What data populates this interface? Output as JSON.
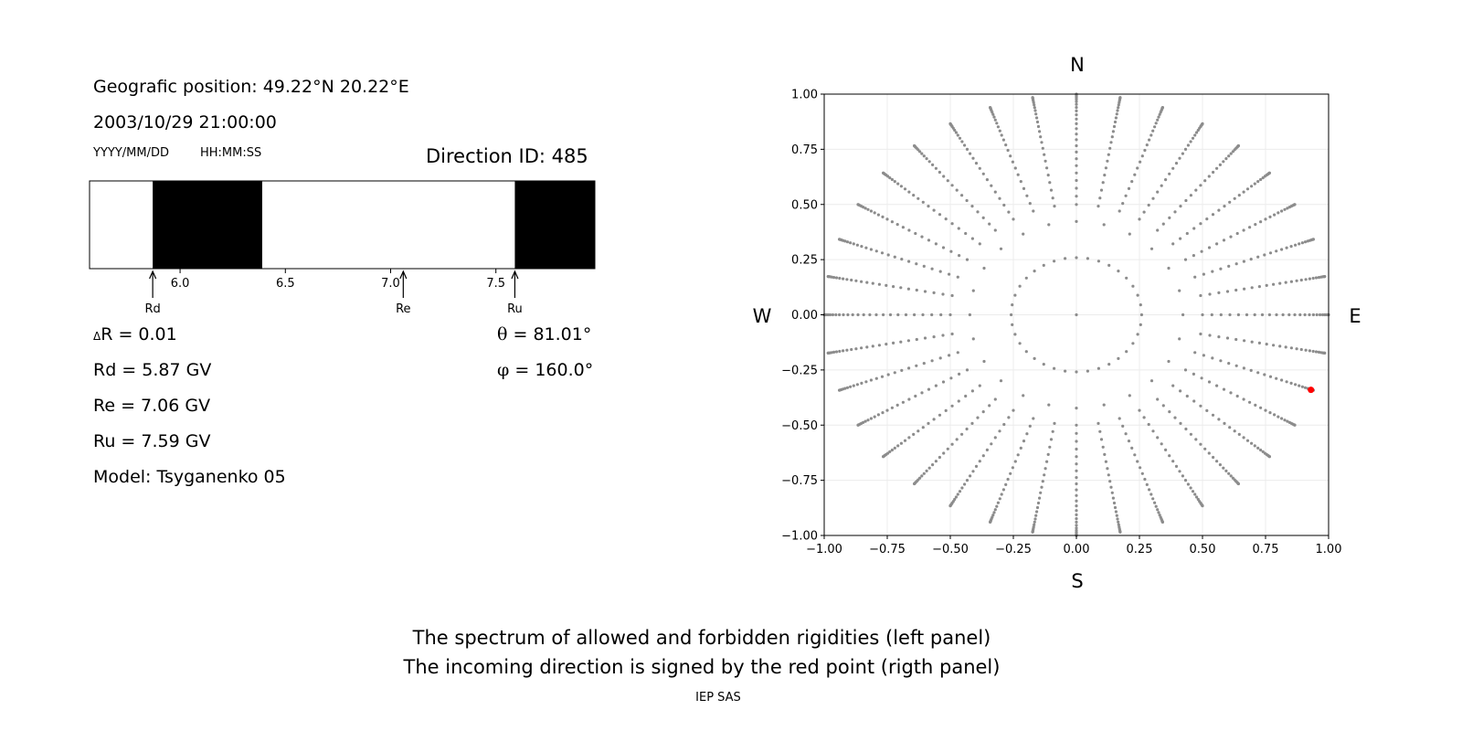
{
  "left_panel": {
    "geo_position": "Geografic position: 49.22°N 20.22°E",
    "datetime": "2003/10/29 21:00:00",
    "date_format": "YYYY/MM/DD",
    "time_format": "HH:MM:SS",
    "direction_id": "Direction ID: 485",
    "delta_r_symbol": "Δ",
    "delta_r": "R = 0.01",
    "rd": "Rd = 5.87 GV",
    "re": "Re = 7.06 GV",
    "ru": "Ru = 7.59 GV",
    "model": "Model: Tsyganenko 05",
    "theta_symbol": "θ",
    "theta": "= 81.01°",
    "phi_symbol": "φ",
    "phi": "= 160.0°"
  },
  "captions": {
    "line1": "The spectrum of allowed and forbidden rigidities (left panel)",
    "line2": "The incoming direction is signed by the red point (rigth panel)",
    "credit": "IEP SAS"
  },
  "chart_data": [
    {
      "type": "spectrum_bar",
      "xlim": [
        5.57,
        7.97
      ],
      "xticks": [
        6.0,
        6.5,
        7.0,
        7.5
      ],
      "xtick_labels": [
        "6.0",
        "6.5",
        "7.0",
        "7.5"
      ],
      "forbidden_bands": [
        [
          5.87,
          6.39
        ],
        [
          7.59,
          7.97
        ]
      ],
      "markers": [
        {
          "label": "Rd",
          "value": 5.87
        },
        {
          "label": "Re",
          "value": 7.06
        },
        {
          "label": "Ru",
          "value": 7.59
        }
      ],
      "colors": {
        "forbidden": "#000000",
        "allowed": "#ffffff"
      }
    },
    {
      "type": "scatter",
      "xlim": [
        -1.0,
        1.0
      ],
      "ylim": [
        -1.0,
        1.0
      ],
      "xticks": [
        "−1.00",
        "−0.75",
        "−0.50",
        "−0.25",
        "0.00",
        "0.25",
        "0.50",
        "0.75",
        "1.00"
      ],
      "yticks": [
        "1.00",
        "0.75",
        "0.50",
        "0.25",
        "0.00",
        "−0.25",
        "−0.50",
        "−0.75",
        "−1.00"
      ],
      "tick_values": [
        -1.0,
        -0.75,
        -0.5,
        -0.25,
        0,
        0.25,
        0.5,
        0.75,
        1.0
      ],
      "grid": true,
      "compass": {
        "north": "N",
        "south": "S",
        "east": "E",
        "west": "W"
      },
      "directions": {
        "zenith": [
          0
        ],
        "zenith_step_deg": 5,
        "zenith_max_deg": 90,
        "rings": [
          {
            "zenith_deg": 15,
            "azimuth_step_deg": 10
          },
          {
            "zenith_deg": 25,
            "azimuth_step_deg": 15
          }
        ],
        "spoke_min_zenith_deg": 30,
        "spoke_azimuth_step_deg": 10
      },
      "highlight": {
        "x": 0.93,
        "y": -0.34,
        "color": "#ff0000"
      },
      "point_color": "#8c8c8c"
    }
  ]
}
